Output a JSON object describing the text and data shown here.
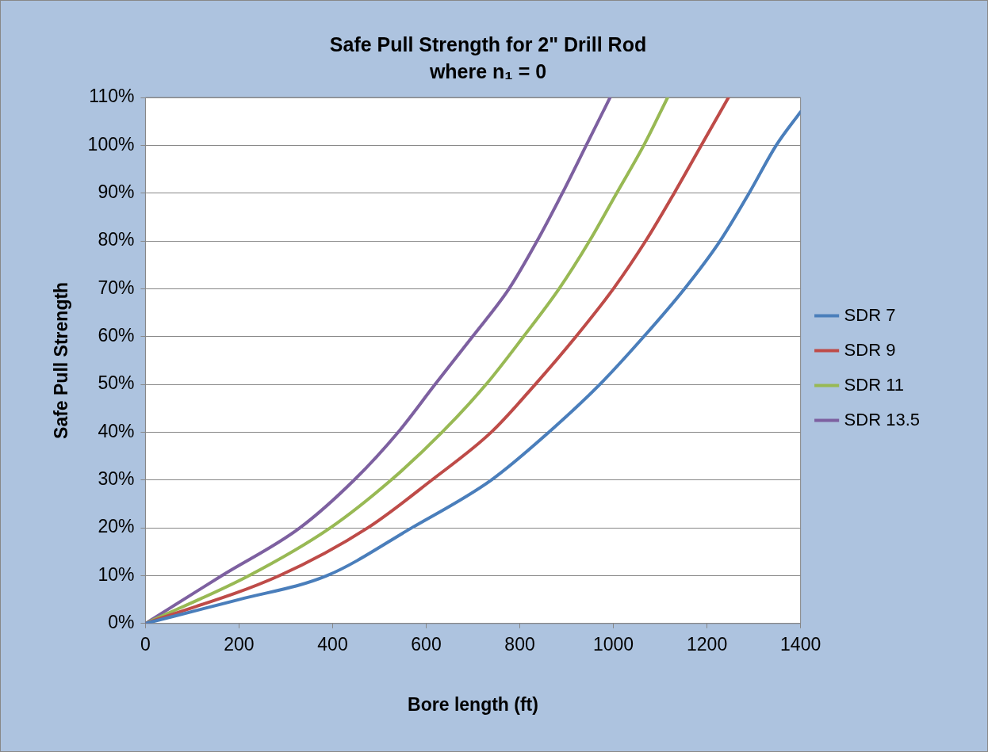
{
  "chart_data": {
    "type": "line",
    "title": "Safe Pull Strength for 2\" Drill Rod",
    "subtitle": "where n₁ = 0",
    "xlabel": "Bore length (ft)",
    "ylabel": "Safe Pull Strength",
    "xlim": [
      0,
      1400
    ],
    "xticks": [
      0,
      200,
      400,
      600,
      800,
      1000,
      1200,
      1400
    ],
    "ylim": [
      0,
      110
    ],
    "yticks": [
      {
        "value": 0,
        "label": "0%"
      },
      {
        "value": 10,
        "label": "10%"
      },
      {
        "value": 20,
        "label": "20%"
      },
      {
        "value": 30,
        "label": "30%"
      },
      {
        "value": 40,
        "label": "40%"
      },
      {
        "value": 50,
        "label": "50%"
      },
      {
        "value": 60,
        "label": "60%"
      },
      {
        "value": 70,
        "label": "70%"
      },
      {
        "value": 80,
        "label": "80%"
      },
      {
        "value": 90,
        "label": "90%"
      },
      {
        "value": 100,
        "label": "100%"
      },
      {
        "value": 110,
        "label": "110%"
      }
    ],
    "grid": "y",
    "legend": "right",
    "marker": "none",
    "line_style": "solid",
    "series": [
      {
        "name": "SDR 7",
        "color": "#4a7ebb",
        "x": [
          0,
          200,
          388,
          569,
          739,
          862,
          971,
          1065,
          1152,
          1228,
          1290,
          1348,
          1400
        ],
        "values": [
          0,
          5,
          10,
          20,
          30,
          40,
          50,
          60,
          70,
          80,
          90,
          100,
          107
        ]
      },
      {
        "name": "SDR 9",
        "color": "#be4b48",
        "x": [
          0,
          286,
          475,
          612,
          739,
          833,
          920,
          1000,
          1069,
          1130,
          1188,
          1246
        ],
        "values": [
          0,
          10,
          20,
          30,
          40,
          50,
          60,
          70,
          80,
          90,
          100,
          110
        ]
      },
      {
        "name": "SDR 11",
        "color": "#98b954",
        "x": [
          0,
          221,
          395,
          525,
          634,
          728,
          808,
          884,
          949,
          1007,
          1065,
          1116
        ],
        "values": [
          0,
          10,
          20,
          30,
          40,
          50,
          60,
          70,
          80,
          90,
          100,
          110
        ]
      },
      {
        "name": "SDR 13.5",
        "color": "#7d60a0",
        "x": [
          0,
          163,
          330,
          446,
          540,
          619,
          699,
          777,
          837,
          891,
          942,
          993
        ],
        "values": [
          0,
          10,
          20,
          30,
          40,
          50,
          60,
          70,
          80,
          90,
          100,
          110
        ]
      }
    ]
  }
}
